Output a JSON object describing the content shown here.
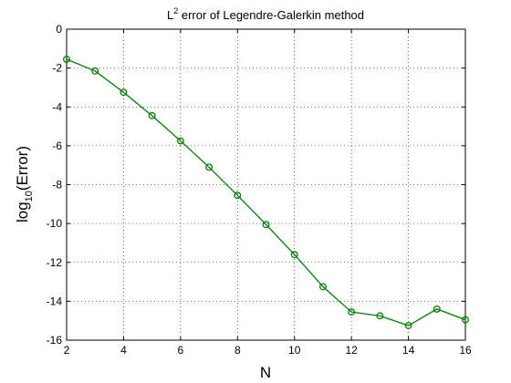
{
  "chart_data": {
    "type": "line",
    "title": {
      "prefix": "L",
      "superscript": "2",
      "suffix": " error of Legendre-Galerkin method"
    },
    "xlabel": "N",
    "ylabel": {
      "prefix": "log",
      "subscript": "10",
      "suffix": "(Error)"
    },
    "xlim": [
      2,
      16
    ],
    "ylim": [
      -16,
      0
    ],
    "xticks": [
      2,
      4,
      6,
      8,
      10,
      12,
      14,
      16
    ],
    "yticks": [
      0,
      -2,
      -4,
      -6,
      -8,
      -10,
      -12,
      -14,
      -16
    ],
    "grid": true,
    "series": [
      {
        "color": "#007f00",
        "marker": "circle",
        "x": [
          2,
          3,
          4,
          5,
          6,
          7,
          8,
          9,
          10,
          11,
          12,
          13,
          14,
          15,
          16
        ],
        "y": [
          -1.55,
          -2.15,
          -3.25,
          -4.45,
          -5.75,
          -7.1,
          -8.55,
          -10.05,
          -11.6,
          -13.25,
          -14.55,
          -14.75,
          -15.25,
          -14.4,
          -14.95
        ]
      }
    ]
  }
}
